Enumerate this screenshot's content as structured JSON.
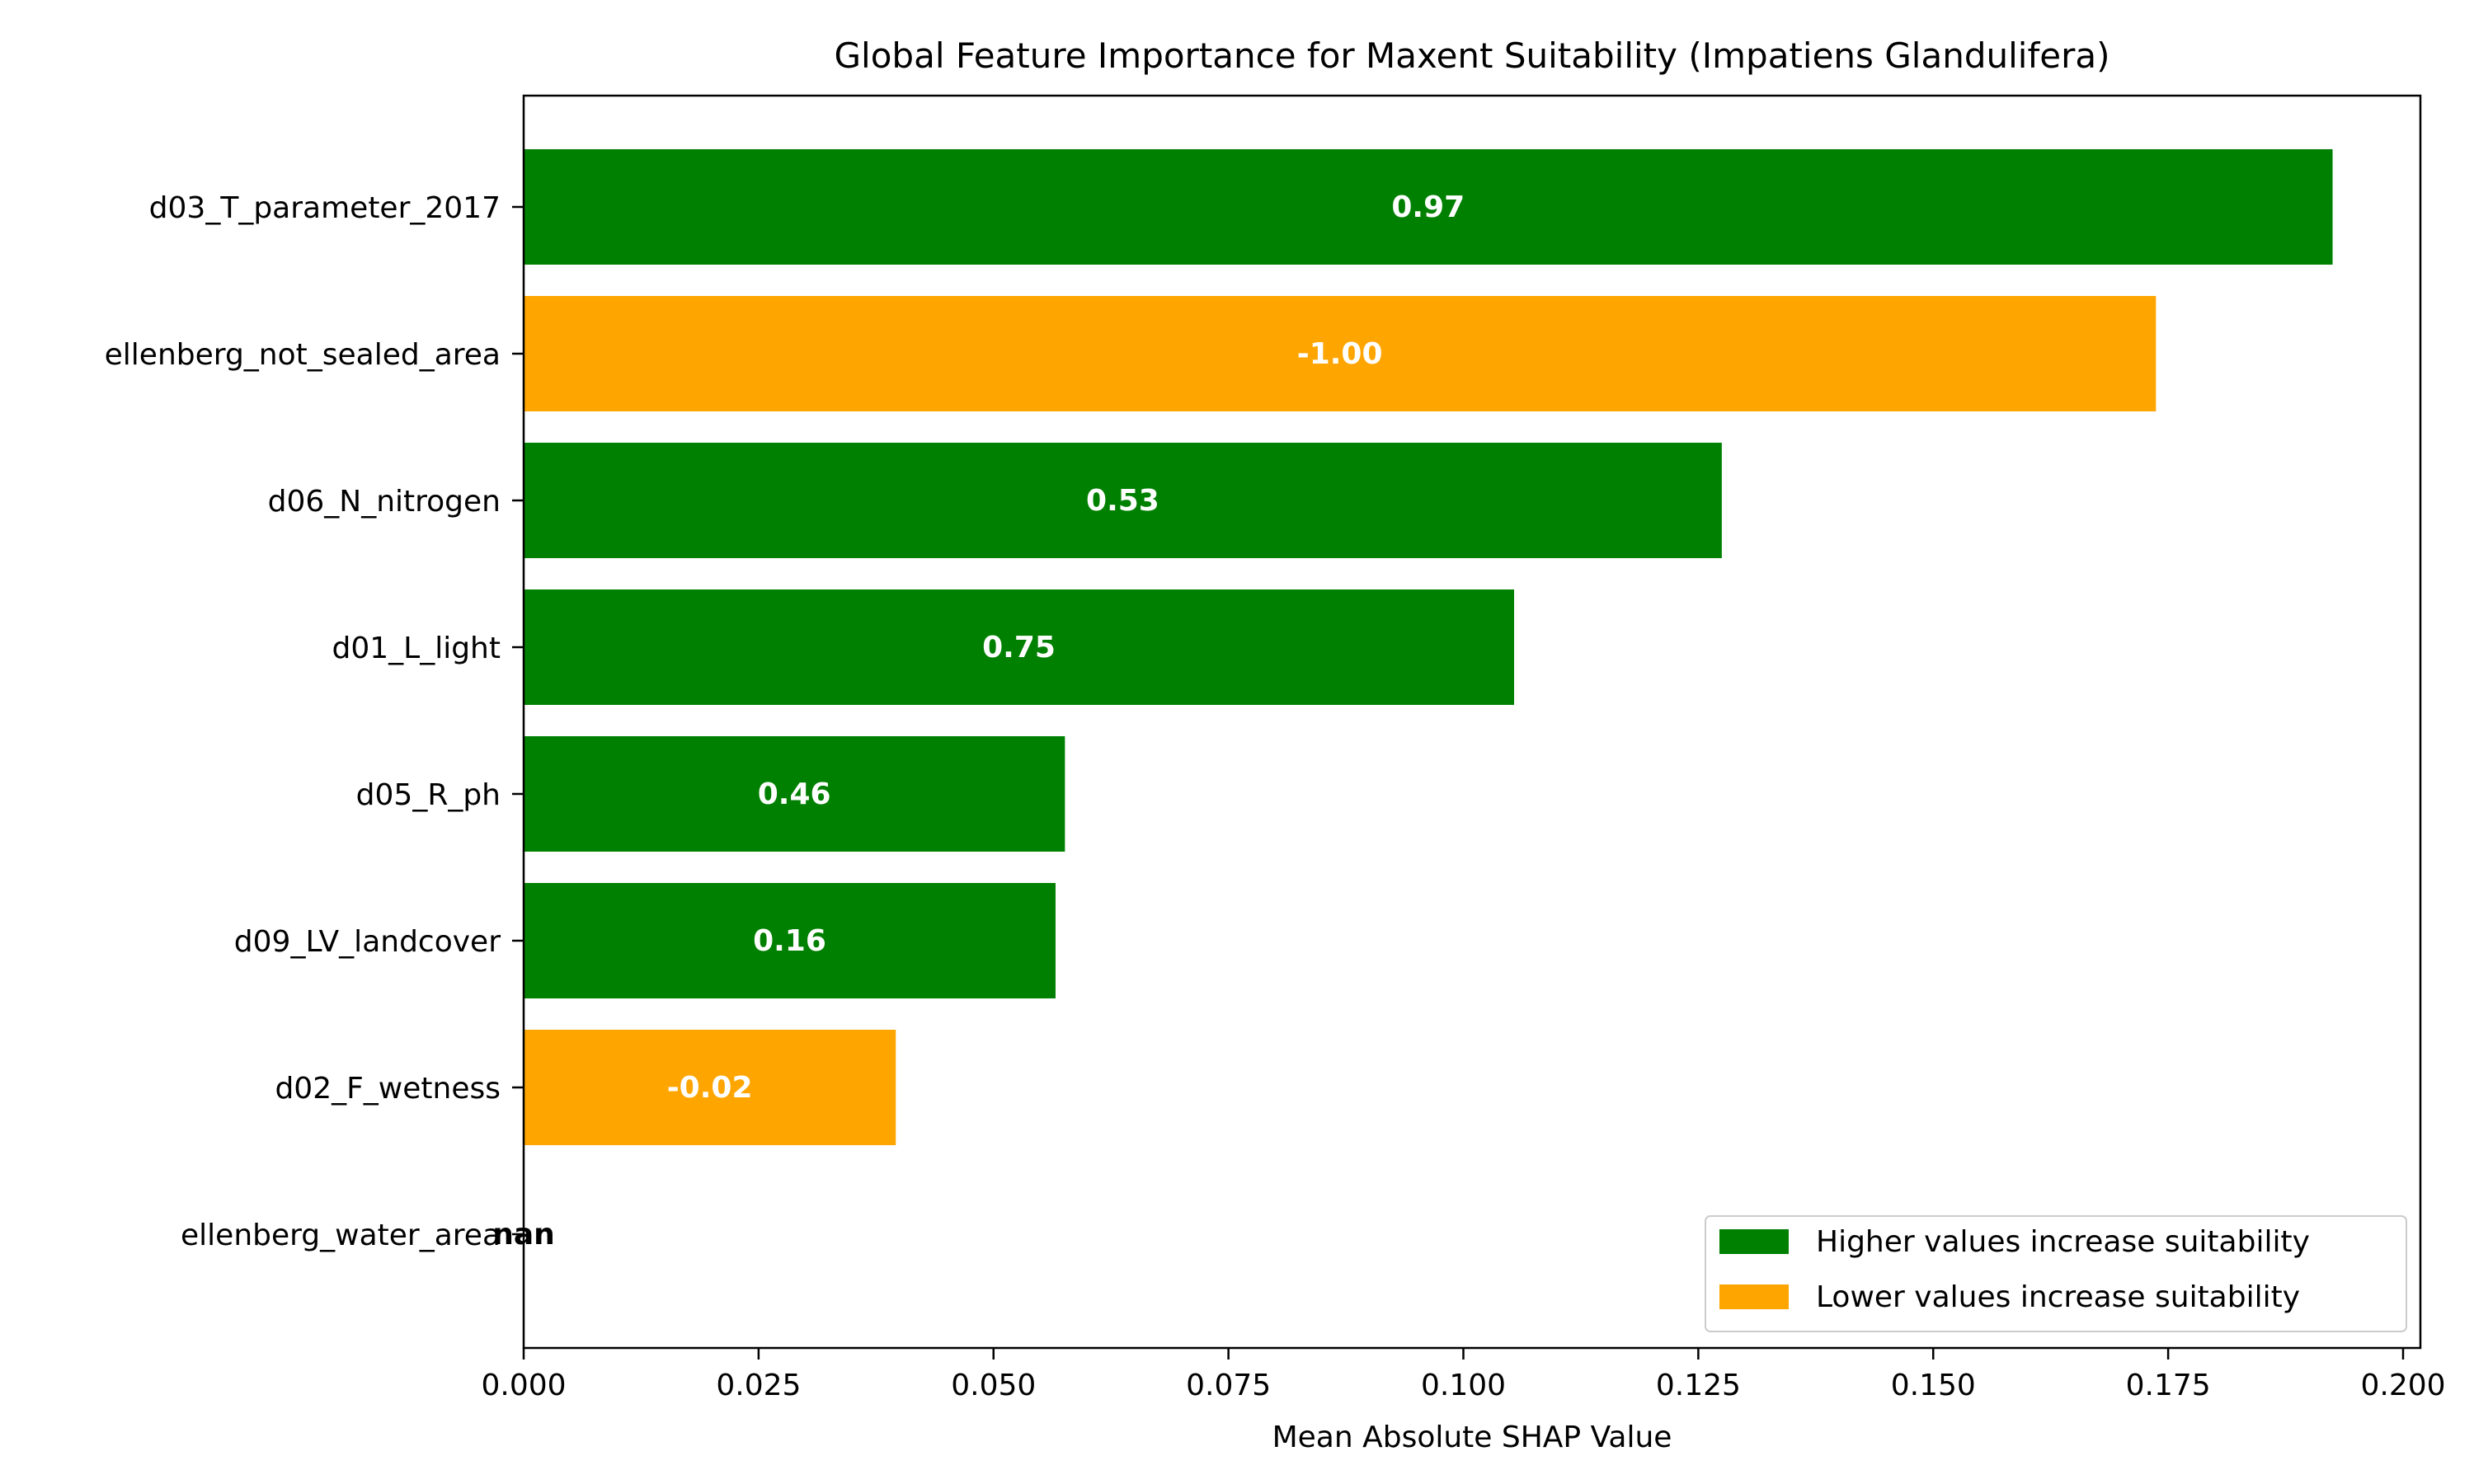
{
  "chart_data": {
    "type": "bar",
    "orientation": "horizontal",
    "title": "Global Feature Importance for Maxent Suitability (Impatiens Glandulifera)",
    "xlabel": "Mean Absolute SHAP Value",
    "ylabel": "",
    "xlim": [
      0,
      0.2
    ],
    "xticks": [
      "0.000",
      "0.025",
      "0.050",
      "0.075",
      "0.100",
      "0.125",
      "0.150",
      "0.175",
      "0.200"
    ],
    "categories": [
      "d03_T_parameter_2017",
      "ellenberg_not_sealed_area",
      "d06_N_nitrogen",
      "d01_L_light",
      "d05_R_ph",
      "d09_LV_landcover",
      "d02_F_wetness",
      "ellenberg_water_area"
    ],
    "values": [
      0.1925,
      0.1737,
      0.1275,
      0.1054,
      0.0576,
      0.0566,
      0.0396,
      0
    ],
    "bar_labels": [
      "0.97",
      "-1.00",
      "0.53",
      "0.75",
      "0.46",
      "0.16",
      "-0.02",
      "nan"
    ],
    "bar_groups": [
      "higher",
      "lower",
      "higher",
      "higher",
      "higher",
      "higher",
      "lower",
      "none"
    ],
    "colors": {
      "higher": "#008000",
      "lower": "#ffa500"
    },
    "legend": {
      "position": "lower-right",
      "entries": [
        {
          "key": "higher",
          "label": "Higher values increase suitability"
        },
        {
          "key": "lower",
          "label": "Lower values increase suitability"
        }
      ]
    },
    "grid": false
  }
}
